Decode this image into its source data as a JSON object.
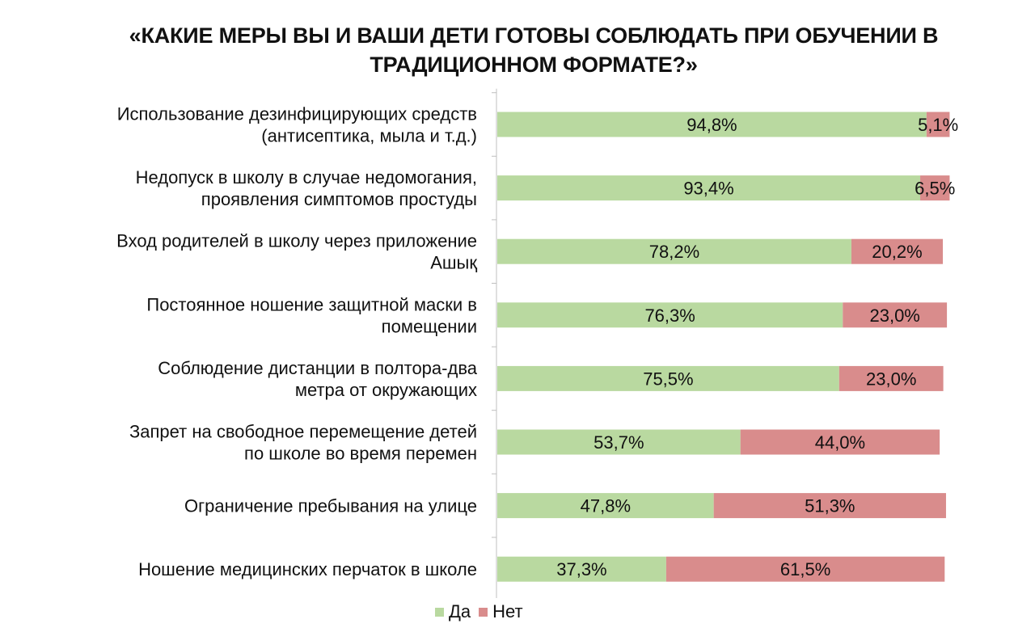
{
  "title": {
    "line1": "«КАКИЕ МЕРЫ ВЫ И ВАШИ ДЕТИ ГОТОВЫ СОБЛЮДАТЬ ПРИ ОБУЧЕНИИ В",
    "line2": "ТРАДИЦИОННОМ ФОРМАТЕ?»"
  },
  "colors": {
    "yes": "#b9d9a0",
    "no": "#d98c8c",
    "axis": "#bfbfbf"
  },
  "chart_data": {
    "type": "bar",
    "orientation": "horizontal",
    "stacked": true,
    "categories": [
      [
        "Использование дезинфицирующих средств",
        "(антисептика, мыла и т.д.)"
      ],
      [
        "Недопуск в школу в случае недомогания,",
        "проявления симптомов простуды"
      ],
      [
        "Вход родителей в школу через приложение",
        "Ашық"
      ],
      [
        "Постоянное ношение защитной маски в",
        "помещении"
      ],
      [
        "Соблюдение дистанции в полтора-два",
        "метра от окружающих"
      ],
      [
        "Запрет на свободное перемещение детей",
        "по школе во время перемен"
      ],
      [
        "Ограничение пребывания на улице"
      ],
      [
        "Ношение медицинских перчаток в школе"
      ]
    ],
    "series": [
      {
        "name": "Да",
        "values": [
          94.8,
          93.4,
          78.2,
          76.3,
          75.5,
          53.7,
          47.8,
          37.3
        ],
        "labels": [
          "94,8%",
          "93,4%",
          "78,2%",
          "76,3%",
          "75,5%",
          "53,7%",
          "47,8%",
          "37,3%"
        ]
      },
      {
        "name": "Нет",
        "values": [
          5.1,
          6.5,
          20.2,
          23.0,
          23.0,
          44.0,
          51.3,
          61.5
        ],
        "labels": [
          "5,1%",
          "6,5%",
          "20,2%",
          "23,0%",
          "23,0%",
          "44,0%",
          "51,3%",
          "61,5%"
        ]
      }
    ],
    "xlim": [
      0,
      100
    ],
    "grid": false,
    "legend_position": "bottom"
  }
}
